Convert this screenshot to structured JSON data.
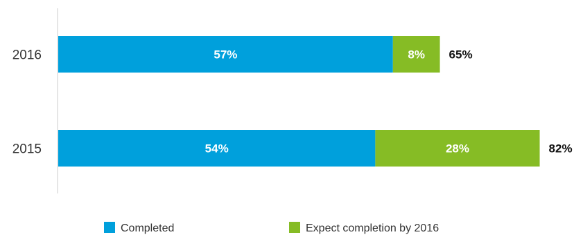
{
  "chart_data": {
    "type": "bar",
    "orientation": "horizontal",
    "stacked": true,
    "title": "",
    "xlabel": "",
    "ylabel": "",
    "categories": [
      "2016",
      "2015"
    ],
    "series": [
      {
        "name": "Completed",
        "values": [
          57,
          54
        ],
        "labels": [
          "57%",
          "54%"
        ],
        "color": "#00a0dc"
      },
      {
        "name": "Expect completion by 2016",
        "values": [
          8,
          28
        ],
        "labels": [
          "8%",
          "28%"
        ],
        "color": "#86bc25"
      }
    ],
    "totals": [
      "65%",
      "82%"
    ],
    "xlim": [
      0,
      100
    ],
    "grid": false,
    "legend": "bottom-center"
  }
}
